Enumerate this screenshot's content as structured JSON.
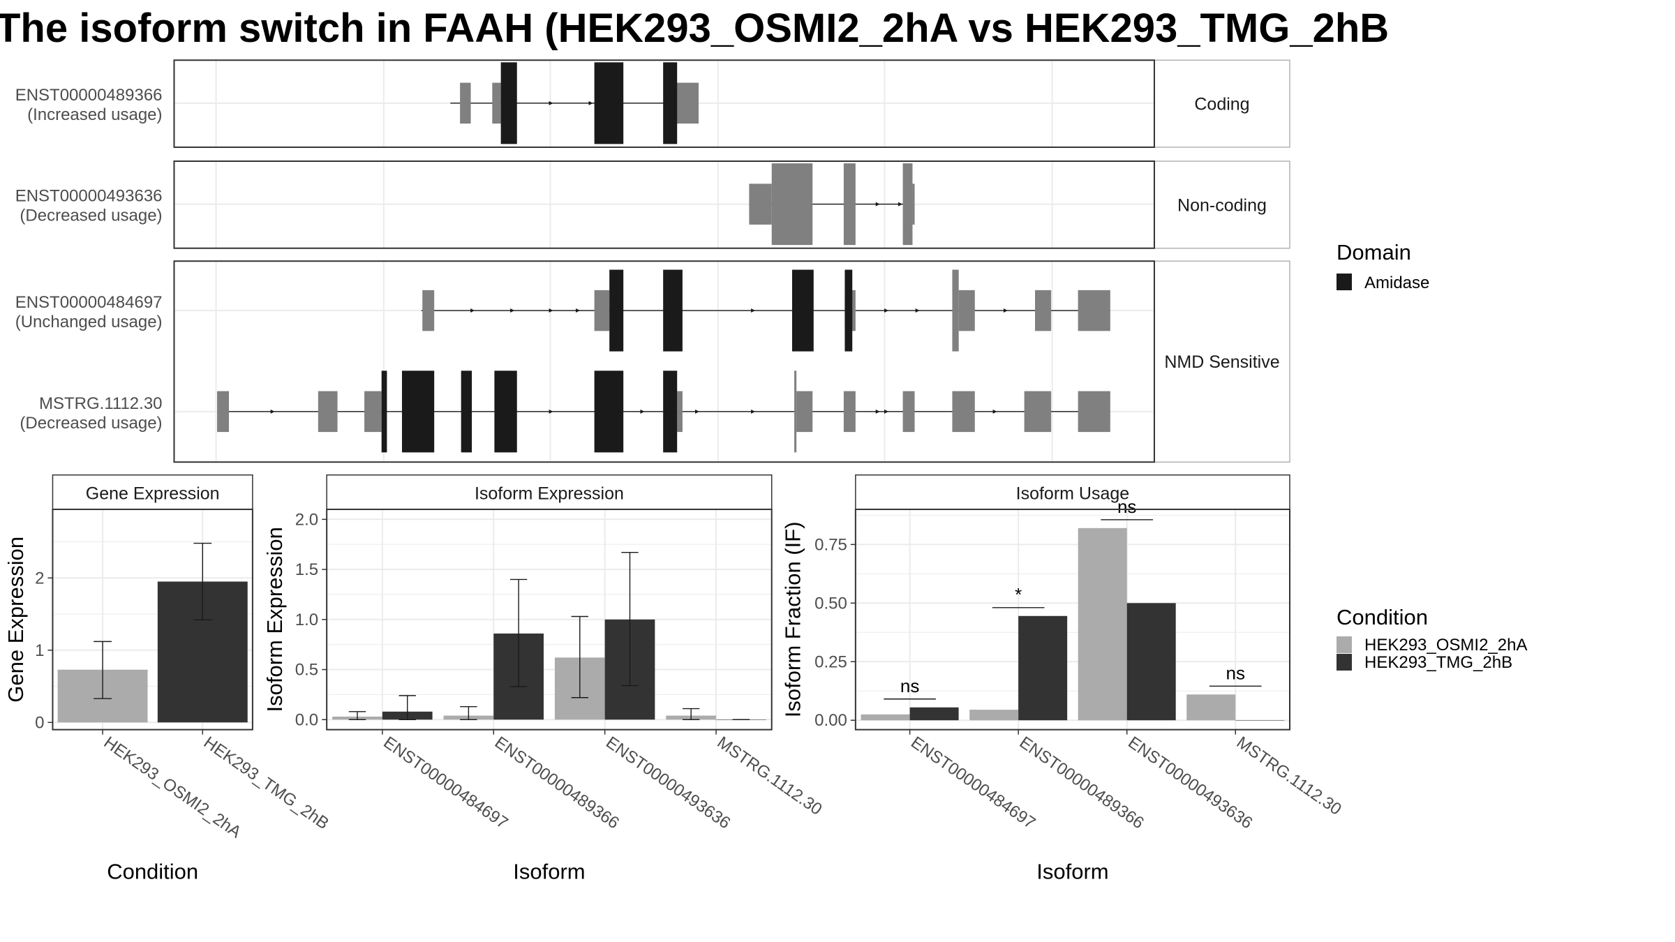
{
  "title": "The isoform switch in FAAH (HEK293_OSMI2_2hA vs HEK293_TMG_2hB",
  "colors": {
    "domain": "#1a1a1a",
    "utr": "#808080",
    "condition_a": "#ababab",
    "condition_b": "#333333"
  },
  "transcripts": {
    "facets": [
      {
        "label": "Coding",
        "rows": [
          {
            "name": "ENST00000489366",
            "usage": "(Increased usage)",
            "introns": [
              [
                419,
                646
              ]
            ],
            "utr": [
              [
                428,
                438
              ],
              [
                458,
                466
              ],
              [
                627,
                650
              ]
            ],
            "domain": [
              [
                466,
                481
              ],
              [
                553,
                580
              ],
              [
                617,
                630
              ]
            ],
            "arrows": [
              514,
              551
            ]
          }
        ]
      },
      {
        "label": "Non-coding",
        "rows": [
          {
            "name": "ENST00000493636",
            "usage": "(Decreased usage)",
            "introns": [
              [
                700,
                850
              ]
            ],
            "utr": [
              [
                697,
                718
              ],
              [
                718,
                756
              ],
              [
                785,
                796
              ],
              [
                840,
                849
              ],
              [
                849,
                851
              ]
            ],
            "domain": [],
            "arrows": [
              818,
              839
            ]
          }
        ]
      },
      {
        "label": "NMD Sensitive",
        "rows": [
          {
            "name": "ENST00000484697",
            "usage": "(Unchanged usage)",
            "introns": [
              [
                392,
                1033
              ]
            ],
            "utr": [
              [
                393,
                404
              ],
              [
                553,
                567
              ],
              [
                786,
                796
              ],
              [
                886,
                892
              ],
              [
                892,
                907
              ],
              [
                963,
                978
              ],
              [
                1003,
                1033
              ]
            ],
            "domain": [
              [
                567,
                580
              ],
              [
                617,
                635
              ],
              [
                737,
                757
              ],
              [
                786,
                793
              ]
            ],
            "arrows": [
              441,
              478,
              514,
              539,
              702,
              826,
              855,
              937
            ]
          },
          {
            "name": "MSTRG.1112.30",
            "usage": "(Decreased usage)",
            "introns": [
              [
                202,
                1033
              ]
            ],
            "utr": [
              [
                202,
                213
              ],
              [
                296,
                314
              ],
              [
                339,
                355
              ],
              [
                630,
                635
              ],
              [
                739,
                741
              ],
              [
                741,
                756
              ],
              [
                785,
                796
              ],
              [
                840,
                851
              ],
              [
                886,
                907
              ],
              [
                953,
                978
              ],
              [
                1003,
                1033
              ]
            ],
            "domain": [
              [
                355,
                360
              ],
              [
                374,
                404
              ],
              [
                429,
                439
              ],
              [
                460,
                481
              ],
              [
                553,
                580
              ],
              [
                617,
                630
              ]
            ],
            "arrows": [
              255,
              478,
              514,
              599,
              650,
              702,
              818,
              826,
              927
            ]
          }
        ]
      }
    ]
  },
  "chart_data": [
    {
      "type": "bar",
      "title": "Gene Expression",
      "xlabel": "Condition",
      "ylabel": "Gene Expression",
      "categories": [
        "HEK293_OSMI2_2hA",
        "HEK293_TMG_2hB"
      ],
      "values": [
        0.73,
        1.95
      ],
      "errors": [
        [
          0.33,
          1.12
        ],
        [
          1.42,
          2.48
        ]
      ],
      "ylim": [
        -0.1,
        2.95
      ],
      "yticks": [
        "0",
        "1",
        "2"
      ]
    },
    {
      "type": "bar",
      "title": "Isoform Expression",
      "xlabel": "Isoform",
      "ylabel": "Isoform Expression",
      "categories": [
        "ENST00000484697",
        "ENST00000489366",
        "ENST00000493636",
        "MSTRG.1112.30"
      ],
      "series": [
        {
          "name": "HEK293_OSMI2_2hA",
          "values": [
            0.03,
            0.04,
            0.62,
            0.04
          ],
          "errors": [
            [
              0.0,
              0.08
            ],
            [
              0.0,
              0.13
            ],
            [
              0.22,
              1.03
            ],
            [
              0.0,
              0.11
            ]
          ]
        },
        {
          "name": "HEK293_TMG_2hB",
          "values": [
            0.08,
            0.86,
            1.0,
            0.0
          ],
          "errors": [
            [
              0.0,
              0.24
            ],
            [
              0.33,
              1.4
            ],
            [
              0.34,
              1.67
            ],
            [
              0.0,
              0.0
            ]
          ]
        }
      ],
      "ylim": [
        -0.1,
        2.1
      ],
      "yticks": [
        "0.0",
        "0.5",
        "1.0",
        "1.5",
        "2.0"
      ]
    },
    {
      "type": "bar",
      "title": "Isoform Usage",
      "xlabel": "Isoform",
      "ylabel": "Isoform Fraction (IF)",
      "categories": [
        "ENST00000484697",
        "ENST00000489366",
        "ENST00000493636",
        "MSTRG.1112.30"
      ],
      "series": [
        {
          "name": "HEK293_OSMI2_2hA",
          "values": [
            0.025,
            0.045,
            0.82,
            0.11
          ]
        },
        {
          "name": "HEK293_TMG_2hB",
          "values": [
            0.055,
            0.445,
            0.5,
            0.0
          ]
        }
      ],
      "significance": [
        "ns",
        "*",
        "ns",
        "ns"
      ],
      "ylim": [
        -0.04,
        0.9
      ],
      "yticks": [
        "0.00",
        "0.25",
        "0.50",
        "0.75"
      ]
    }
  ],
  "legend": {
    "domain": {
      "title": "Domain",
      "items": [
        "Amidase"
      ]
    },
    "condition": {
      "title": "Condition",
      "items": [
        "HEK293_OSMI2_2hA",
        "HEK293_TMG_2hB"
      ]
    }
  }
}
